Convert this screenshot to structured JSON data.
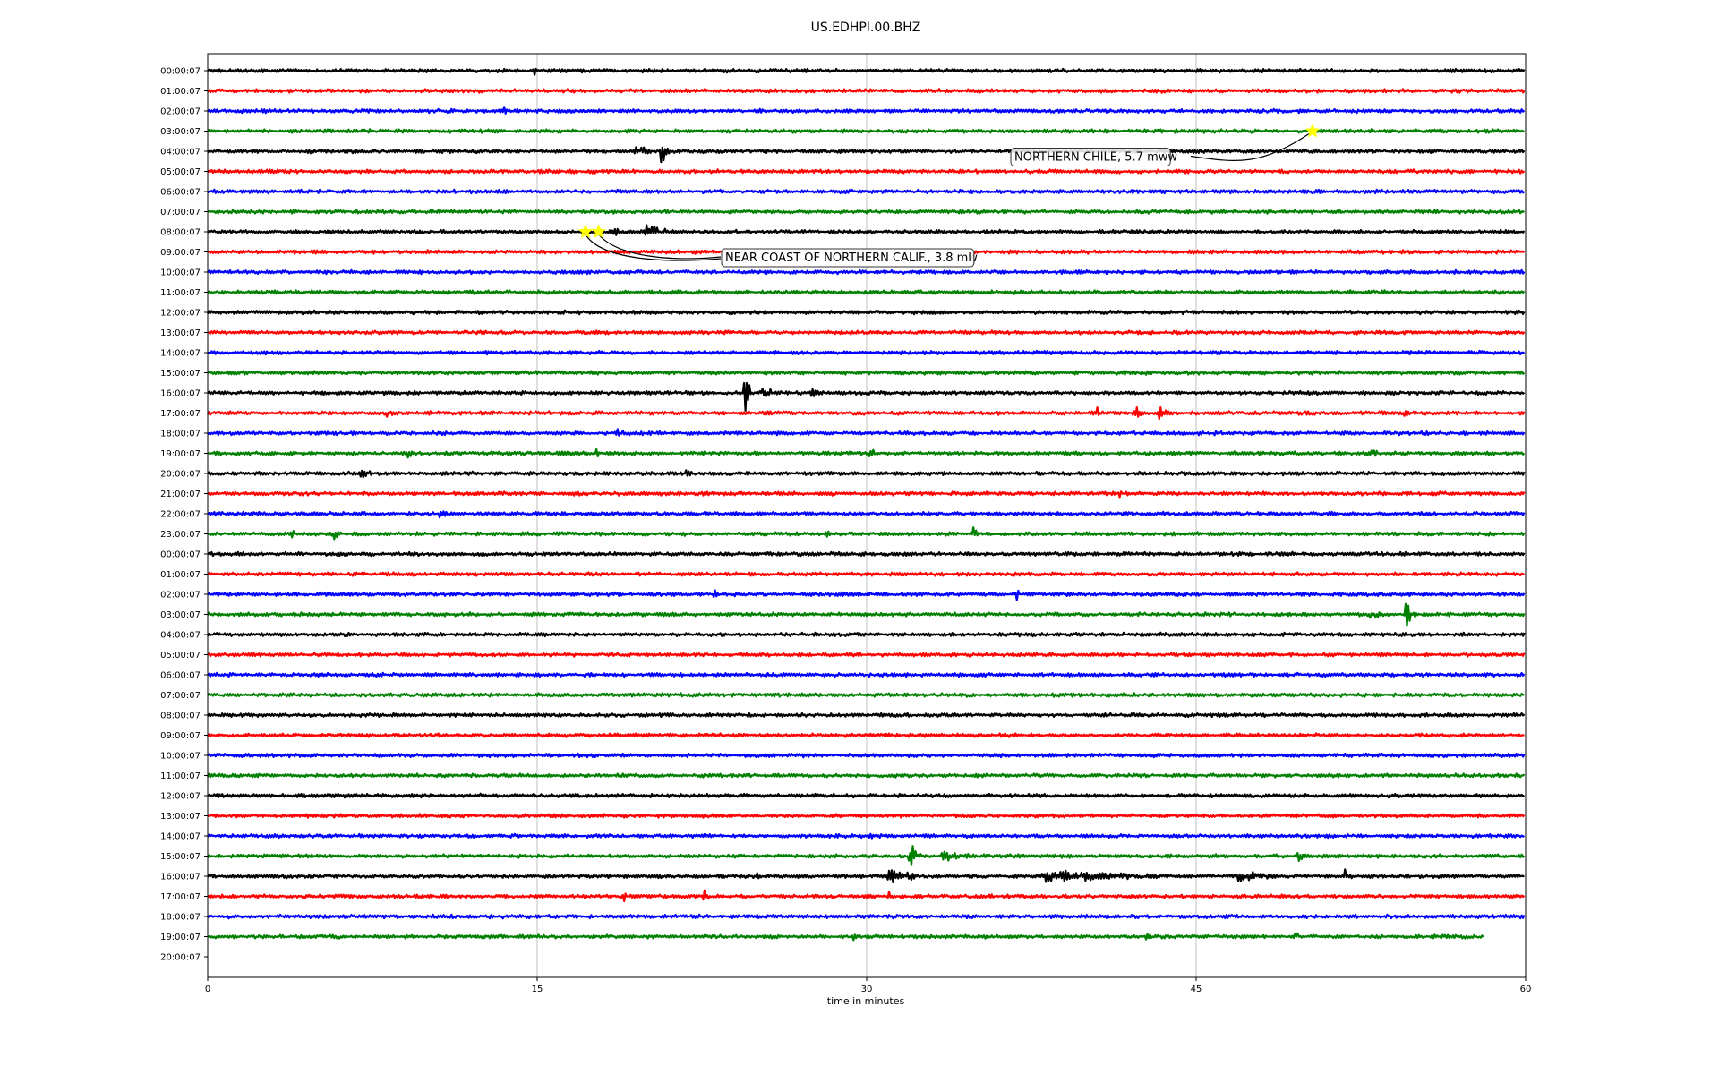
{
  "chart_data": {
    "type": "line",
    "title": "US.EDHPI.00.BHZ",
    "xlabel": "time in minutes",
    "ylabel": "",
    "xlim": [
      0,
      60
    ],
    "xticks": [
      0,
      15,
      30,
      45,
      60
    ],
    "grid": "vertical lines at 15, 30, 45",
    "trace_colors": [
      "#000000",
      "#ff0000",
      "#0000ff",
      "#008000"
    ],
    "row_labels": [
      "00:00:07",
      "01:00:07",
      "02:00:07",
      "03:00:07",
      "04:00:07",
      "05:00:07",
      "06:00:07",
      "07:00:07",
      "08:00:07",
      "09:00:07",
      "10:00:07",
      "11:00:07",
      "12:00:07",
      "13:00:07",
      "14:00:07",
      "15:00:07",
      "16:00:07",
      "17:00:07",
      "18:00:07",
      "19:00:07",
      "20:00:07",
      "21:00:07",
      "22:00:07",
      "23:00:07",
      "00:00:07",
      "01:00:07",
      "02:00:07",
      "03:00:07",
      "04:00:07",
      "05:00:07",
      "06:00:07",
      "07:00:07",
      "08:00:07",
      "09:00:07",
      "10:00:07",
      "11:00:07",
      "12:00:07",
      "13:00:07",
      "14:00:07",
      "15:00:07",
      "16:00:07",
      "17:00:07",
      "18:00:07",
      "19:00:07",
      "20:00:07"
    ],
    "events": [
      {
        "row": 0,
        "minute": 14.9,
        "amp": 9,
        "dur": 0.2
      },
      {
        "row": 0,
        "minute": 22.6,
        "amp": 4,
        "dur": 0.3
      },
      {
        "row": 2,
        "minute": 1.5,
        "amp": 6,
        "dur": 0.3
      },
      {
        "row": 2,
        "minute": 13.6,
        "amp": 5,
        "dur": 0.3
      },
      {
        "row": 4,
        "minute": 19.5,
        "amp": 8,
        "dur": 1.8
      },
      {
        "row": 4,
        "minute": 20.7,
        "amp": 22,
        "dur": 0.3
      },
      {
        "row": 8,
        "minute": 18.5,
        "amp": 5,
        "dur": 0.8
      },
      {
        "row": 8,
        "minute": 20.0,
        "amp": 9,
        "dur": 2.0
      },
      {
        "row": 16,
        "minute": 24.5,
        "amp": 30,
        "dur": 0.2
      },
      {
        "row": 16,
        "minute": 25.3,
        "amp": 10,
        "dur": 1.2
      },
      {
        "row": 16,
        "minute": 27.5,
        "amp": 5,
        "dur": 1.5
      },
      {
        "row": 17,
        "minute": 8.1,
        "amp": 9,
        "dur": 0.6
      },
      {
        "row": 17,
        "minute": 10.0,
        "amp": 4,
        "dur": 0.3
      },
      {
        "row": 17,
        "minute": 40.6,
        "amp": 7,
        "dur": 0.3
      },
      {
        "row": 17,
        "minute": 42.2,
        "amp": 14,
        "dur": 0.5
      },
      {
        "row": 17,
        "minute": 43.4,
        "amp": 12,
        "dur": 0.5
      },
      {
        "row": 17,
        "minute": 54.5,
        "amp": 6,
        "dur": 0.3
      },
      {
        "row": 18,
        "minute": 18.7,
        "amp": 6,
        "dur": 1.2
      },
      {
        "row": 18,
        "minute": 45.9,
        "amp": 7,
        "dur": 0.3
      },
      {
        "row": 19,
        "minute": 6.5,
        "amp": 6,
        "dur": 0.3
      },
      {
        "row": 19,
        "minute": 9.2,
        "amp": 8,
        "dur": 0.4
      },
      {
        "row": 19,
        "minute": 17.8,
        "amp": 6,
        "dur": 0.3
      },
      {
        "row": 19,
        "minute": 30.2,
        "amp": 10,
        "dur": 0.6
      },
      {
        "row": 19,
        "minute": 53.0,
        "amp": 8,
        "dur": 0.6
      },
      {
        "row": 20,
        "minute": 7.0,
        "amp": 10,
        "dur": 0.7
      },
      {
        "row": 20,
        "minute": 21.8,
        "amp": 8,
        "dur": 0.5
      },
      {
        "row": 20,
        "minute": 24.6,
        "amp": 5,
        "dur": 0.2
      },
      {
        "row": 21,
        "minute": 41.6,
        "amp": 6,
        "dur": 0.4
      },
      {
        "row": 22,
        "minute": 10.6,
        "amp": 7,
        "dur": 0.6
      },
      {
        "row": 23,
        "minute": 3.9,
        "amp": 5,
        "dur": 0.3
      },
      {
        "row": 23,
        "minute": 5.8,
        "amp": 9,
        "dur": 0.4
      },
      {
        "row": 23,
        "minute": 8.5,
        "amp": 5,
        "dur": 0.6
      },
      {
        "row": 23,
        "minute": 28.2,
        "amp": 6,
        "dur": 0.4
      },
      {
        "row": 23,
        "minute": 34.9,
        "amp": 10,
        "dur": 0.2
      },
      {
        "row": 26,
        "minute": 23.1,
        "amp": 7,
        "dur": 0.3
      },
      {
        "row": 26,
        "minute": 28.8,
        "amp": 6,
        "dur": 0.4
      },
      {
        "row": 26,
        "minute": 36.9,
        "amp": 10,
        "dur": 0.2
      },
      {
        "row": 27,
        "minute": 53.0,
        "amp": 6,
        "dur": 1.5
      },
      {
        "row": 27,
        "minute": 54.6,
        "amp": 22,
        "dur": 0.4
      },
      {
        "row": 38,
        "minute": 30.2,
        "amp": 5,
        "dur": 0.4
      },
      {
        "row": 39,
        "minute": 32.0,
        "amp": 24,
        "dur": 0.5
      },
      {
        "row": 39,
        "minute": 33.5,
        "amp": 8,
        "dur": 2.5
      },
      {
        "row": 39,
        "minute": 49.7,
        "amp": 6,
        "dur": 0.4
      },
      {
        "row": 40,
        "minute": 25.0,
        "amp": 7,
        "dur": 0.2
      },
      {
        "row": 40,
        "minute": 31.0,
        "amp": 10,
        "dur": 3.0
      },
      {
        "row": 40,
        "minute": 38.0,
        "amp": 10,
        "dur": 8.0
      },
      {
        "row": 40,
        "minute": 47.0,
        "amp": 11,
        "dur": 2.0
      },
      {
        "row": 40,
        "minute": 51.8,
        "amp": 12,
        "dur": 0.3
      },
      {
        "row": 41,
        "minute": 19.0,
        "amp": 10,
        "dur": 0.5
      },
      {
        "row": 41,
        "minute": 22.6,
        "amp": 9,
        "dur": 0.3
      },
      {
        "row": 41,
        "minute": 31.0,
        "amp": 7,
        "dur": 0.2
      },
      {
        "row": 41,
        "minute": 36.7,
        "amp": 7,
        "dur": 0.3
      },
      {
        "row": 43,
        "minute": 29.4,
        "amp": 7,
        "dur": 0.2
      },
      {
        "row": 43,
        "minute": 42.8,
        "amp": 9,
        "dur": 0.2
      },
      {
        "row": 43,
        "minute": 49.6,
        "amp": 7,
        "dur": 0.3
      }
    ],
    "last_trace_end_minute": 58.1,
    "annotations": [
      {
        "text": "NORTHERN CHILE, 5.7 mww",
        "row": 3,
        "minute": 50.3
      },
      {
        "text": "NEAR COAST OF NORTHERN CALIF., 3.8 ml",
        "row": 8,
        "minute": 17.2
      },
      {
        "text": "NEAR COAST OF NORTHERN CALIF., 3.8 mw",
        "row": 8,
        "minute": 17.8
      }
    ]
  }
}
